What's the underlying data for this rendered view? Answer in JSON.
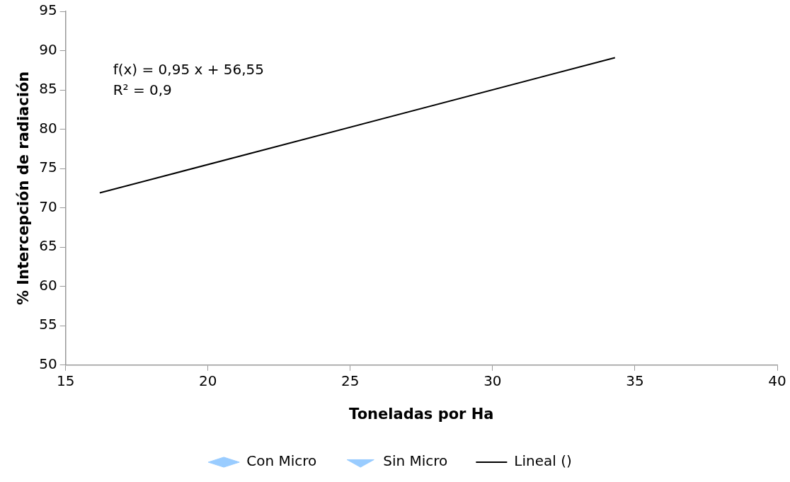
{
  "chart_data": {
    "type": "scatter",
    "xlabel": "Toneladas por Ha",
    "ylabel": "% Intercepción de radiación",
    "xlim": [
      15,
      40
    ],
    "xticks": [
      15,
      20,
      25,
      30,
      35,
      40
    ],
    "ylim": [
      50,
      95
    ],
    "yticks": [
      50,
      55,
      60,
      65,
      70,
      75,
      80,
      85,
      90,
      95
    ],
    "grid": false,
    "legend": "bottom",
    "annotations": [
      "f(x) = 0,95 x + 56,55",
      "R² = 0,9"
    ],
    "series": [
      {
        "name": "Con Micro",
        "type": "scatter",
        "marker": "diamond",
        "color": "#99ccff"
      },
      {
        "name": "Sin Micro",
        "type": "scatter",
        "marker": "triangle",
        "color": "#99ccff"
      },
      {
        "name": "Lineal ()",
        "type": "line",
        "marker": "none",
        "line_style": "solid",
        "color": "#000000",
        "x": [
          16.2,
          34.3
        ],
        "values": [
          71.9,
          89.1
        ]
      }
    ]
  }
}
